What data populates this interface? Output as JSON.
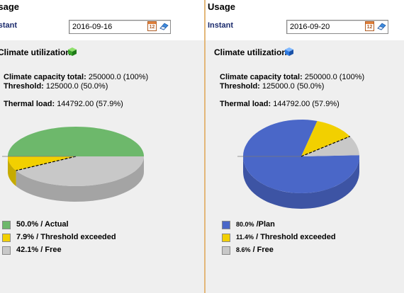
{
  "left": {
    "header_title": "Usage",
    "instant_label": "Instant",
    "date_value": "2016-09-16",
    "card_title": "Climate utilization",
    "cube_icon": "green-cube-icon",
    "capacity_label": "Climate capacity total:",
    "capacity_value": "250000.0 (100%)",
    "threshold_label": "Threshold:",
    "threshold_value": "125000.0 (50.0%)",
    "thermal_label": "Thermal load:",
    "thermal_value": "144792.00 (57.9%)",
    "legend": [
      {
        "pct": "50.0%",
        "label": " / Actual",
        "color": "#6db86b"
      },
      {
        "pct": "7.9%",
        "label": " / Threshold exceeded",
        "color": "#f2d000"
      },
      {
        "pct": "42.1%",
        "label": " / Free",
        "color": "#c8c8c8"
      }
    ]
  },
  "right": {
    "header_title": "Usage",
    "instant_label": "Instant",
    "date_value": "2016-09-20",
    "card_title": "Climate utilization",
    "cube_icon": "blue-cube-icon",
    "capacity_label": "Climate capacity total:",
    "capacity_value": "250000.0 (100%)",
    "threshold_label": "Threshold:",
    "threshold_value": "125000.0 (50.0%)",
    "thermal_label": "Thermal load:",
    "thermal_value": "144792.00 (57.9%)",
    "legend": [
      {
        "pct": "80.0%",
        "label": " /Plan",
        "color": "#4a67c8"
      },
      {
        "pct": "11.4%",
        "label": " / Threshold exceeded",
        "color": "#f2d000"
      },
      {
        "pct": "8.6%",
        "label": " / Free",
        "color": "#c8c8c8"
      }
    ]
  },
  "chart_data": [
    {
      "type": "pie",
      "categories": [
        "Actual",
        "Threshold exceeded",
        "Free"
      ],
      "values": [
        50.0,
        7.9,
        42.1
      ],
      "colors": [
        "#6db86b",
        "#f2d000",
        "#c8c8c8"
      ]
    },
    {
      "type": "pie",
      "categories": [
        "Plan",
        "Threshold exceeded",
        "Free"
      ],
      "values": [
        80.0,
        11.4,
        8.6
      ],
      "colors": [
        "#4a67c8",
        "#f2d000",
        "#c8c8c8"
      ]
    }
  ]
}
